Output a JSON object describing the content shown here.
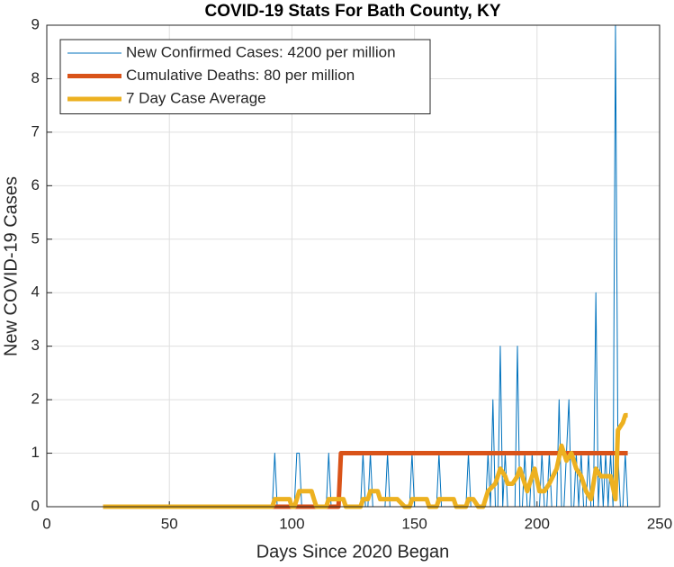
{
  "chart_data": {
    "type": "line",
    "title": "COVID-19 Stats For Bath County, KY",
    "x_label": "Days Since 2020 Began",
    "y_label": "New COVID-19 Cases",
    "xlim": [
      0,
      250
    ],
    "xticks": [
      0,
      50,
      100,
      150,
      200,
      250
    ],
    "ylim": [
      0,
      9
    ],
    "yticks": [
      0,
      1,
      2,
      3,
      4,
      5,
      6,
      7,
      8,
      9
    ],
    "grid": true,
    "legend_location": "northwest",
    "series": [
      {
        "name": "New Confirmed Cases: 4200 per million",
        "color": "#0072bd",
        "width": 1,
        "x": [
          23,
          92,
          93,
          94,
          101,
          102,
          103,
          104,
          114,
          115,
          116,
          128,
          129,
          130,
          131,
          132,
          133,
          138,
          139,
          140,
          148,
          149,
          150,
          159,
          160,
          161,
          171,
          172,
          173,
          179,
          180,
          181,
          182,
          183,
          184,
          185,
          186,
          187,
          188,
          191,
          192,
          193,
          194,
          195,
          196,
          197,
          198,
          199,
          201,
          202,
          203,
          204,
          205,
          206,
          208,
          209,
          210,
          211,
          212,
          213,
          214,
          215,
          216,
          217,
          218,
          219,
          220,
          221,
          222,
          223,
          224,
          225,
          226,
          227,
          228,
          229,
          230,
          231,
          232,
          233,
          234,
          235,
          236,
          237
        ],
        "values": [
          0,
          0,
          1,
          0,
          0,
          1,
          1,
          0,
          0,
          1,
          0,
          0,
          1,
          0,
          0,
          1,
          0,
          0,
          1,
          0,
          0,
          1,
          0,
          0,
          1,
          0,
          0,
          1,
          0,
          0,
          1,
          0,
          2,
          0,
          0,
          3,
          0,
          1,
          0,
          0,
          3,
          0,
          0,
          1,
          0,
          0,
          1,
          0,
          0,
          1,
          0,
          0,
          1,
          0,
          0,
          2,
          0,
          0,
          1,
          2,
          0,
          0,
          1,
          0,
          1,
          0,
          0,
          1,
          0,
          0,
          4,
          0,
          1,
          0,
          1,
          0,
          1,
          0,
          9,
          1,
          0,
          0,
          1,
          0
        ]
      },
      {
        "name": "Cumulative Deaths: 80 per million",
        "color": "#d95319",
        "width": 5,
        "x": [
          23,
          119,
          120,
          237
        ],
        "values": [
          0,
          0,
          1,
          1
        ]
      },
      {
        "name": "7 Day Case Average",
        "color": "#edb120",
        "width": 5,
        "x": [
          23,
          92,
          93,
          99,
          100,
          101,
          102,
          103,
          108,
          109,
          110,
          114,
          115,
          121,
          122,
          128,
          129,
          131,
          132,
          135,
          136,
          140,
          143,
          146,
          148,
          149,
          155,
          156,
          159,
          160,
          166,
          167,
          171,
          172,
          174,
          176,
          178,
          180,
          183,
          185,
          187,
          188,
          190,
          192,
          193,
          194,
          196,
          198,
          199,
          201,
          203,
          205,
          208,
          210,
          212,
          214,
          216,
          218,
          220,
          222,
          224,
          226,
          228,
          230,
          232,
          233,
          235,
          236,
          237
        ],
        "values": [
          0,
          0,
          0.14,
          0.14,
          0,
          0,
          0.14,
          0.29,
          0.29,
          0.14,
          0,
          0,
          0.14,
          0.14,
          0,
          0,
          0.14,
          0.14,
          0.29,
          0.29,
          0.14,
          0.14,
          0.14,
          0,
          0,
          0.14,
          0.14,
          0,
          0,
          0.14,
          0.14,
          0,
          0,
          0.14,
          0.14,
          0,
          0,
          0.29,
          0.43,
          0.71,
          0.57,
          0.43,
          0.43,
          0.57,
          0.71,
          0.57,
          0.29,
          0.57,
          0.71,
          0.29,
          0.29,
          0.43,
          0.71,
          1.14,
          0.86,
          1,
          0.71,
          0.57,
          0.29,
          0.14,
          0.71,
          0.57,
          0.57,
          0.57,
          0.14,
          1.43,
          1.57,
          1.71,
          1.71
        ]
      }
    ]
  }
}
